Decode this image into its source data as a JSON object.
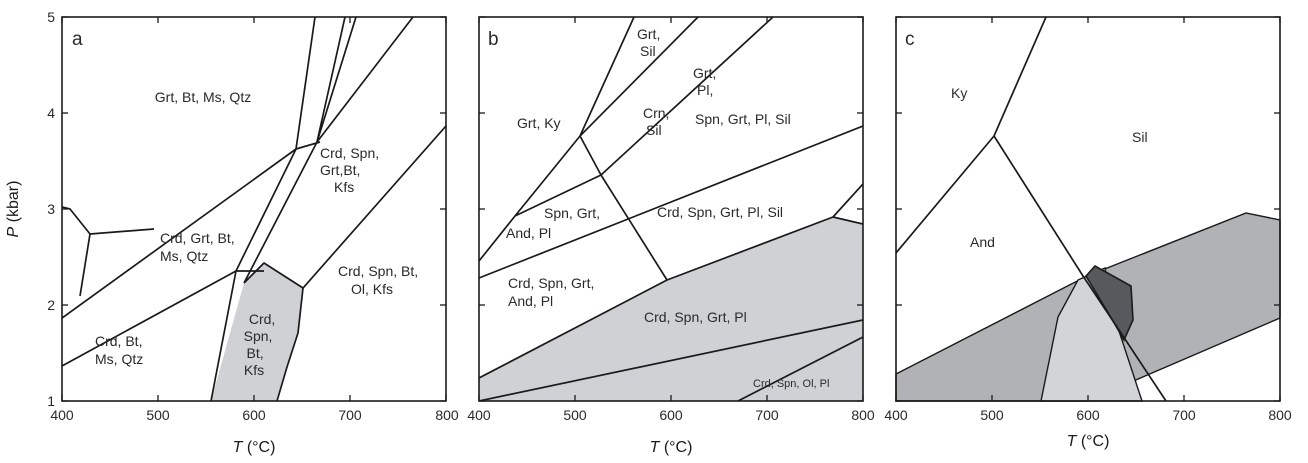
{
  "axes": {
    "x_title": "T",
    "x_unit": "(°C)",
    "y_title": "P",
    "y_unit": "(kbar)",
    "x_ticks": [
      "400",
      "500",
      "600",
      "700",
      "800"
    ],
    "y_ticks": [
      "1",
      "2",
      "3",
      "4",
      "5"
    ],
    "x_range": [
      400,
      800
    ],
    "y_range": [
      1,
      5
    ]
  },
  "panels": [
    {
      "tag": "a",
      "fields": [
        {
          "lines": [
            "Grt, Bt, Ms, Qtz"
          ]
        },
        {
          "lines": [
            "Crd, Spn,",
            "Grt,Bt,",
            "Kfs"
          ]
        },
        {
          "lines": [
            "Crd, Grt, Bt,",
            "Ms, Qtz"
          ]
        },
        {
          "lines": [
            "Crd, Spn, Bt,",
            "Ol, Kfs"
          ]
        },
        {
          "lines": [
            "Crd,",
            "Spn,",
            "Bt,",
            "Kfs"
          ]
        },
        {
          "lines": [
            "Crd, Bt,",
            "Ms, Qtz"
          ]
        }
      ]
    },
    {
      "tag": "b",
      "fields": [
        {
          "lines": [
            "Grt,",
            "Sil"
          ]
        },
        {
          "lines": [
            "Grt,",
            "Pl,"
          ]
        },
        {
          "lines": [
            "Crn,",
            "Sil"
          ]
        },
        {
          "lines": [
            "Grt, Ky"
          ]
        },
        {
          "lines": [
            "Spn, Grt, Pl, Sil"
          ]
        },
        {
          "lines": [
            "Spn, Grt,"
          ]
        },
        {
          "lines": [
            "And, Pl"
          ]
        },
        {
          "lines": [
            "Crd, Spn, Grt, Pl, Sil"
          ]
        },
        {
          "lines": [
            "Crd, Spn, Grt,",
            "And, Pl"
          ]
        },
        {
          "lines": [
            "Crd, Spn, Grt, Pl"
          ]
        },
        {
          "lines": [
            "Crd, Spn, Ol, Pl"
          ]
        }
      ]
    },
    {
      "tag": "c",
      "fields": [
        {
          "lines": [
            "Ky"
          ]
        },
        {
          "lines": [
            "Sil"
          ]
        },
        {
          "lines": [
            "And"
          ]
        }
      ]
    }
  ],
  "colors": {
    "light_fill": "#cfd1d4",
    "medium_fill": "#b0b2b5",
    "dark_fill": "#58595c",
    "lines": "#1a1a1a"
  }
}
